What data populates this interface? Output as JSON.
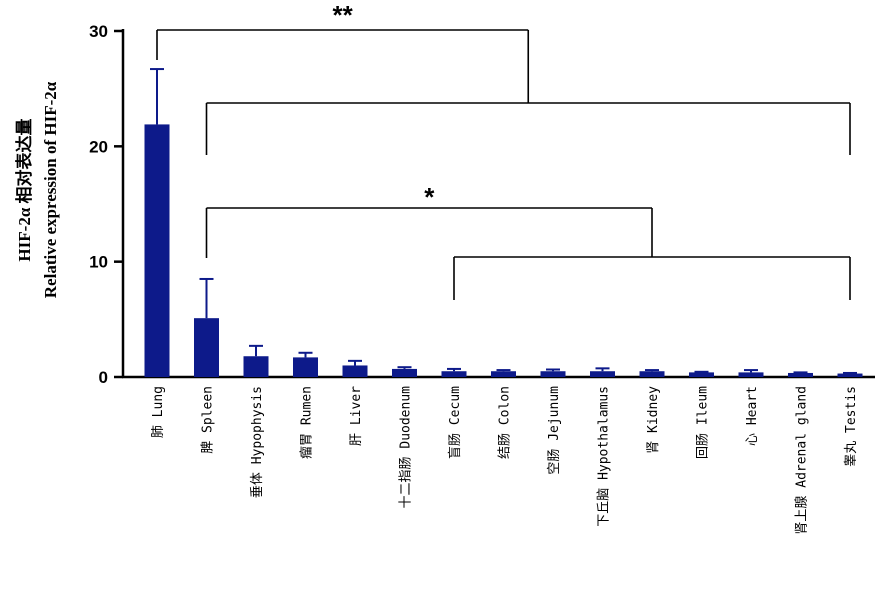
{
  "chart_data": {
    "type": "bar",
    "ylabel_line1": "HIF-2α 相对表达量",
    "ylabel_line2": "Relative expression of HIF-2α",
    "ylim": [
      0,
      30
    ],
    "yticks": [
      0,
      10,
      20,
      30
    ],
    "bar_color": "#0d1a8a",
    "categories": [
      "肺 Lung",
      "脾 Spleen",
      "垂体 Hypophysis",
      "瘤胃 Rumen",
      "肝 Liver",
      "十二指肠 Duodenum",
      "盲肠 Cecum",
      "结肠 Colon",
      "空肠 Jejunum",
      "下丘脑 Hypothalamus",
      "肾 Kidney",
      "回肠 Ileum",
      "心 Heart",
      "肾上腺 Adrenal gland",
      "睾丸 Testis"
    ],
    "values": [
      21.9,
      5.1,
      1.8,
      1.7,
      1.0,
      0.7,
      0.5,
      0.5,
      0.5,
      0.5,
      0.5,
      0.4,
      0.4,
      0.35,
      0.3
    ],
    "errors": [
      4.8,
      3.4,
      0.9,
      0.4,
      0.4,
      0.15,
      0.2,
      0.1,
      0.15,
      0.25,
      0.1,
      0.05,
      0.2,
      0.05,
      0.05
    ],
    "significance": [
      {
        "label": "**",
        "from": 0,
        "to_mid": [
          1,
          14
        ]
      },
      {
        "label": "*",
        "from": 1,
        "to_mid": [
          6,
          14
        ]
      }
    ]
  }
}
